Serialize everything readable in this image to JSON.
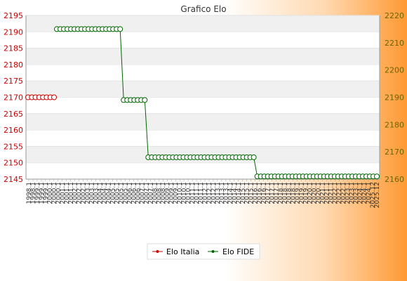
{
  "chart_data": {
    "type": "line",
    "title": "Grafico Elo",
    "xlabel": "",
    "ylabel": "",
    "y_left": {
      "ticks": [
        2145,
        2150,
        2155,
        2160,
        2165,
        2170,
        2175,
        2180,
        2185,
        2190,
        2195
      ],
      "range": [
        2145,
        2195
      ],
      "color": "#cc0000"
    },
    "y_right": {
      "ticks": [
        2160,
        2170,
        2180,
        2190,
        2200,
        2210,
        2220
      ],
      "range": [
        2160,
        2220
      ],
      "color": "#666600"
    },
    "grid": true,
    "legend_position": "bottom",
    "x_tick_count": 84,
    "x_tick_labels_sample": [
      "1998.1",
      "1999.1",
      "2000.1",
      "2001.1",
      "2002.1",
      "2003.1",
      "2004.1",
      "2005.1",
      "2006.1",
      "2007.1",
      "2008.1",
      "2009.1",
      "2010.1",
      "2011.1",
      "2012.1",
      "2013.1",
      "2014.1",
      "2015.1",
      "2016.1",
      "2017.1",
      "2018.1",
      "2019.1",
      "2020.1",
      "2021.1",
      "2022.1",
      "2023.1",
      "2024.1",
      "2025.12"
    ],
    "series": [
      {
        "name": "Elo Italia",
        "axis": "left",
        "color": "#cc0000",
        "values": [
          2170,
          2170,
          2170,
          2170,
          2170,
          2170,
          2170,
          2170
        ]
      },
      {
        "name": "Elo FIDE",
        "axis": "right",
        "color": "#006600",
        "segments": [
          {
            "value": 2215,
            "count": 19
          },
          {
            "value": 2189,
            "count": 7
          },
          {
            "value": 2168,
            "count": 31
          },
          {
            "value": 2161,
            "count": 35
          }
        ]
      }
    ]
  }
}
